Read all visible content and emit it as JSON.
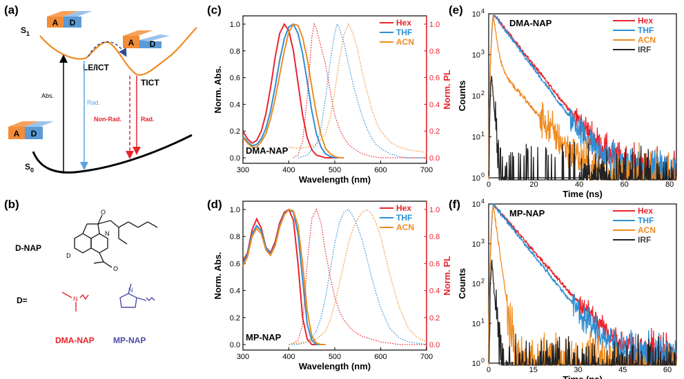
{
  "colors": {
    "hex": "#e8232b",
    "thf": "#2b8fd6",
    "acn": "#f08a1e",
    "irf": "#222222",
    "acceptor": "#f28c38",
    "donor": "#5b9bd5",
    "dma_label": "#e8232b",
    "mp_label": "#4b4ba8"
  },
  "panel_a": {
    "label": "(a)",
    "s1": "S",
    "s1_sub": "1",
    "s0": "S",
    "s0_sub": "0",
    "acceptor": "A",
    "donor": "D",
    "le_ict": "LE/ICT",
    "tict": "TICT",
    "abs": "Abs.",
    "rad_le": "Rad.",
    "nonrad": "Non-Rad.",
    "rad_tict": "Rad."
  },
  "panel_b": {
    "label": "(b)",
    "dnap": "D-NAP",
    "d_eq": "D=",
    "d_atom": "D",
    "o_atom": "O",
    "n_atom": "N",
    "dma_nap": "DMA-NAP",
    "mp_nap": "MP-NAP"
  },
  "chart_data": [
    {
      "id": "c",
      "label": "(c)",
      "type": "line",
      "sample": "DMA-NAP",
      "xlabel": "Wavelength (nm)",
      "ylabel": "Norm. Abs.",
      "ylabel_right": "Norm. PL",
      "xlim": [
        300,
        700
      ],
      "ylim": [
        0,
        1.0
      ],
      "xticks": [
        "300",
        "400",
        "500",
        "600",
        "700"
      ],
      "yticks": [
        "0.0",
        "0.2",
        "0.4",
        "0.6",
        "0.8",
        "1.0"
      ],
      "legend": [
        "Hex",
        "THF",
        "ACN"
      ],
      "series": [
        {
          "name": "Hex abs",
          "style": "solid",
          "x": [
            300,
            310,
            320,
            330,
            340,
            350,
            360,
            370,
            380,
            390,
            400,
            410,
            420,
            430,
            440,
            450,
            460,
            470,
            480,
            490,
            500
          ],
          "values": [
            0.2,
            0.14,
            0.11,
            0.13,
            0.2,
            0.33,
            0.52,
            0.75,
            0.93,
            1.0,
            0.95,
            0.8,
            0.56,
            0.32,
            0.15,
            0.06,
            0.02,
            0.01,
            0.0,
            0.0,
            0.0
          ]
        },
        {
          "name": "THF abs",
          "style": "solid",
          "x": [
            300,
            310,
            320,
            330,
            340,
            350,
            360,
            370,
            380,
            390,
            400,
            410,
            420,
            430,
            440,
            450,
            460,
            470,
            480,
            490,
            500,
            510
          ],
          "values": [
            0.16,
            0.12,
            0.09,
            0.1,
            0.14,
            0.22,
            0.35,
            0.53,
            0.73,
            0.89,
            0.98,
            1.0,
            0.93,
            0.78,
            0.57,
            0.35,
            0.18,
            0.08,
            0.03,
            0.01,
            0.0,
            0.0
          ]
        },
        {
          "name": "ACN abs",
          "style": "solid",
          "x": [
            300,
            310,
            320,
            330,
            340,
            350,
            360,
            370,
            380,
            390,
            400,
            410,
            420,
            430,
            440,
            450,
            460,
            470,
            480,
            490,
            500,
            510,
            520
          ],
          "values": [
            0.15,
            0.11,
            0.08,
            0.08,
            0.12,
            0.18,
            0.29,
            0.44,
            0.62,
            0.8,
            0.94,
            1.0,
            0.99,
            0.9,
            0.74,
            0.53,
            0.33,
            0.17,
            0.07,
            0.03,
            0.01,
            0.0,
            0.0
          ]
        },
        {
          "name": "Hex PL",
          "style": "dot",
          "x": [
            410,
            420,
            430,
            440,
            450,
            455,
            460,
            470,
            480,
            490,
            500,
            510,
            520,
            530,
            540,
            550,
            560,
            570,
            580,
            600,
            620,
            640,
            660,
            680,
            700
          ],
          "values": [
            0.0,
            0.02,
            0.12,
            0.45,
            0.9,
            1.0,
            0.97,
            0.83,
            0.7,
            0.5,
            0.32,
            0.22,
            0.15,
            0.1,
            0.07,
            0.05,
            0.03,
            0.02,
            0.01,
            0.0,
            0.0,
            0.0,
            0.0,
            0.0,
            0.0
          ]
        },
        {
          "name": "THF PL",
          "style": "dot",
          "x": [
            420,
            440,
            460,
            470,
            480,
            490,
            500,
            505,
            510,
            520,
            530,
            540,
            550,
            560,
            570,
            580,
            590,
            600,
            620,
            640,
            660,
            680,
            700
          ],
          "values": [
            0.0,
            0.02,
            0.1,
            0.22,
            0.45,
            0.72,
            0.93,
            1.0,
            0.97,
            0.86,
            0.7,
            0.55,
            0.42,
            0.31,
            0.22,
            0.15,
            0.1,
            0.07,
            0.03,
            0.01,
            0.0,
            0.0,
            0.0
          ]
        },
        {
          "name": "ACN PL",
          "style": "dot",
          "x": [
            400,
            420,
            440,
            460,
            480,
            490,
            500,
            510,
            520,
            530,
            540,
            550,
            560,
            570,
            580,
            590,
            600,
            620,
            640,
            660,
            680,
            700
          ],
          "values": [
            0.08,
            0.07,
            0.08,
            0.1,
            0.18,
            0.3,
            0.5,
            0.72,
            0.92,
            1.0,
            0.93,
            0.8,
            0.64,
            0.5,
            0.37,
            0.27,
            0.2,
            0.12,
            0.08,
            0.06,
            0.05,
            0.04
          ]
        }
      ]
    },
    {
      "id": "d",
      "label": "(d)",
      "type": "line",
      "sample": "MP-NAP",
      "xlabel": "Wavelength (nm)",
      "ylabel": "Norm. Abs.",
      "ylabel_right": "Norm. PL",
      "xlim": [
        300,
        700
      ],
      "ylim": [
        0,
        1.0
      ],
      "xticks": [
        "300",
        "400",
        "500",
        "600",
        "700"
      ],
      "yticks": [
        "0.0",
        "0.2",
        "0.4",
        "0.6",
        "0.8",
        "1.0"
      ],
      "legend": [
        "Hex",
        "THF",
        "ACN"
      ],
      "series": [
        {
          "name": "Hex abs",
          "style": "solid",
          "x": [
            300,
            310,
            320,
            330,
            340,
            350,
            360,
            370,
            380,
            390,
            400,
            410,
            420,
            430,
            440,
            450,
            460,
            470
          ],
          "values": [
            0.62,
            0.68,
            0.85,
            0.93,
            0.86,
            0.72,
            0.68,
            0.76,
            0.9,
            0.98,
            1.0,
            0.92,
            0.6,
            0.2,
            0.04,
            0.0,
            0.0,
            0.0
          ]
        },
        {
          "name": "THF abs",
          "style": "solid",
          "x": [
            300,
            310,
            320,
            330,
            340,
            350,
            360,
            370,
            380,
            390,
            400,
            410,
            420,
            430,
            440,
            450,
            460,
            470,
            480
          ],
          "values": [
            0.6,
            0.67,
            0.82,
            0.88,
            0.84,
            0.72,
            0.67,
            0.74,
            0.88,
            0.97,
            1.0,
            0.98,
            0.82,
            0.48,
            0.15,
            0.03,
            0.0,
            0.0,
            0.0
          ]
        },
        {
          "name": "ACN abs",
          "style": "solid",
          "x": [
            300,
            310,
            320,
            330,
            340,
            350,
            360,
            370,
            380,
            390,
            400,
            410,
            420,
            430,
            440,
            450,
            460,
            470,
            480
          ],
          "values": [
            0.58,
            0.65,
            0.8,
            0.86,
            0.82,
            0.7,
            0.66,
            0.73,
            0.87,
            0.96,
            1.0,
            0.99,
            0.88,
            0.6,
            0.25,
            0.06,
            0.01,
            0.0,
            0.0
          ]
        },
        {
          "name": "Hex PL",
          "style": "dot",
          "x": [
            400,
            410,
            420,
            430,
            440,
            450,
            455,
            460,
            470,
            480,
            490,
            500,
            510,
            520,
            540,
            560,
            580,
            600,
            620,
            640,
            660,
            680,
            700
          ],
          "values": [
            0.0,
            0.01,
            0.03,
            0.15,
            0.6,
            0.93,
            0.97,
            1.0,
            0.9,
            0.68,
            0.5,
            0.35,
            0.25,
            0.18,
            0.1,
            0.06,
            0.04,
            0.02,
            0.01,
            0.0,
            0.0,
            0.0,
            0.0
          ]
        },
        {
          "name": "THF PL",
          "style": "dot",
          "x": [
            400,
            420,
            440,
            450,
            460,
            470,
            480,
            490,
            500,
            510,
            520,
            530,
            540,
            550,
            560,
            570,
            580,
            590,
            600,
            620,
            640,
            660,
            680,
            700
          ],
          "values": [
            0.0,
            0.0,
            0.02,
            0.05,
            0.1,
            0.2,
            0.35,
            0.55,
            0.75,
            0.9,
            0.98,
            1.0,
            0.95,
            0.87,
            0.77,
            0.64,
            0.5,
            0.38,
            0.27,
            0.12,
            0.05,
            0.02,
            0.01,
            0.0
          ]
        },
        {
          "name": "ACN PL",
          "style": "dot",
          "x": [
            400,
            420,
            440,
            460,
            480,
            490,
            500,
            510,
            520,
            530,
            540,
            550,
            560,
            570,
            580,
            590,
            600,
            610,
            620,
            640,
            660,
            680,
            700
          ],
          "values": [
            0.0,
            0.01,
            0.02,
            0.04,
            0.1,
            0.18,
            0.3,
            0.45,
            0.6,
            0.75,
            0.86,
            0.93,
            0.98,
            1.0,
            0.97,
            0.9,
            0.8,
            0.66,
            0.52,
            0.28,
            0.12,
            0.05,
            0.02
          ]
        }
      ]
    },
    {
      "id": "e",
      "label": "(e)",
      "type": "line",
      "sample": "DMA-NAP",
      "xlabel": "Time (ns)",
      "ylabel": "Counts",
      "xlim": [
        0,
        83
      ],
      "ylim_log10": [
        0,
        4
      ],
      "xticks": [
        "0",
        "20",
        "40",
        "60",
        "80"
      ],
      "yticks": [
        "10",
        "10",
        "10",
        "10",
        "10"
      ],
      "ytick_exponents": [
        "0",
        "1",
        "2",
        "3",
        "4"
      ],
      "legend": [
        "Hex",
        "THF",
        "ACN",
        "IRF"
      ],
      "series": [
        {
          "name": "Hex",
          "rise_ns": 2,
          "peak_counts": 10000,
          "lifetime_ns": [
            6.2
          ],
          "weights": [
            1.0
          ],
          "background": 3,
          "noise": 0.3
        },
        {
          "name": "THF",
          "rise_ns": 2,
          "peak_counts": 10000,
          "lifetime_ns": [
            5.8
          ],
          "weights": [
            1.0
          ],
          "background": 3,
          "noise": 0.3
        },
        {
          "name": "ACN",
          "rise_ns": 2,
          "peak_counts": 10000,
          "lifetime_ns": [
            1.0,
            6.5
          ],
          "weights": [
            0.93,
            0.07
          ],
          "background": 2,
          "noise": 0.4
        },
        {
          "name": "IRF",
          "rise_ns": 1.2,
          "peak_counts": 400,
          "lifetime_ns": [
            0.6
          ],
          "weights": [
            1.0
          ],
          "background": 1,
          "noise": 0.7,
          "sparse_end_ns": 40
        }
      ]
    },
    {
      "id": "f",
      "label": "(f)",
      "type": "line",
      "sample": "MP-NAP",
      "xlabel": "Time (ns)",
      "ylabel": "Counts",
      "xlim": [
        0,
        63
      ],
      "ylim_log10": [
        0,
        4
      ],
      "xticks": [
        "0",
        "15",
        "30",
        "45",
        "60"
      ],
      "yticks": [
        "10",
        "10",
        "10",
        "10",
        "10"
      ],
      "ytick_exponents": [
        "0",
        "1",
        "2",
        "3",
        "4"
      ],
      "legend": [
        "Hex",
        "THF",
        "ACN",
        "IRF"
      ],
      "series": [
        {
          "name": "Hex",
          "rise_ns": 1.5,
          "peak_counts": 10000,
          "lifetime_ns": [
            5.0
          ],
          "weights": [
            1.0
          ],
          "background": 3,
          "noise": 0.3
        },
        {
          "name": "THF",
          "rise_ns": 1.5,
          "peak_counts": 10000,
          "lifetime_ns": [
            4.6
          ],
          "weights": [
            1.0
          ],
          "background": 3,
          "noise": 0.3
        },
        {
          "name": "ACN",
          "rise_ns": 1.5,
          "peak_counts": 10000,
          "lifetime_ns": [
            0.8
          ],
          "weights": [
            1.0
          ],
          "background": 2,
          "noise": 0.5,
          "sparse_end_ns": 45
        },
        {
          "name": "IRF",
          "rise_ns": 1.0,
          "peak_counts": 400,
          "lifetime_ns": [
            0.5
          ],
          "weights": [
            1.0
          ],
          "background": 1,
          "noise": 0.7,
          "sparse_end_ns": 10
        }
      ]
    }
  ]
}
